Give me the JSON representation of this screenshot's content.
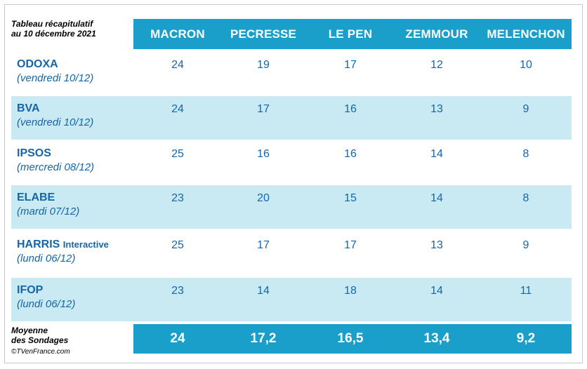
{
  "caption": {
    "line1": "Tableau récapitulatif",
    "line2": "au 10 décembre 2021"
  },
  "columns": [
    "MACRON",
    "PECRESSE",
    "LE PEN",
    "ZEMMOUR",
    "MELENCHON"
  ],
  "rows": [
    {
      "name": "ODOXA",
      "suffix": "",
      "date": "(vendredi 10/12)",
      "values": [
        "24",
        "19",
        "17",
        "12",
        "10"
      ]
    },
    {
      "name": "BVA",
      "suffix": "",
      "date": "(vendredi 10/12)",
      "values": [
        "24",
        "17",
        "16",
        "13",
        "9"
      ]
    },
    {
      "name": "IPSOS",
      "suffix": "",
      "date": "(mercredi 08/12)",
      "values": [
        "25",
        "16",
        "16",
        "14",
        "8"
      ]
    },
    {
      "name": "ELABE",
      "suffix": "",
      "date": "(mardi 07/12)",
      "values": [
        "23",
        "20",
        "15",
        "14",
        "8"
      ]
    },
    {
      "name": "HARRIS",
      "suffix": "Interactive",
      "date": "(lundi 06/12)",
      "values": [
        "25",
        "17",
        "17",
        "13",
        "9"
      ]
    },
    {
      "name": "IFOP",
      "suffix": "",
      "date": "(lundi 06/12)",
      "values": [
        "23",
        "14",
        "18",
        "14",
        "11"
      ]
    }
  ],
  "average": {
    "label_line1": "Moyenne",
    "label_line2": "des Sondages",
    "values": [
      "24",
      "17,2",
      "16,5",
      "13,4",
      "9,2"
    ]
  },
  "copyright": "©TVenFrance.com",
  "colors": {
    "accent": "#1a9fcb",
    "row_shade": "#c9e9f3",
    "text_blue": "#1566a8"
  }
}
